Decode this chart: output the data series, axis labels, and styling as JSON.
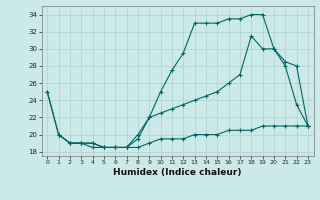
{
  "title": "",
  "xlabel": "Humidex (Indice chaleur)",
  "bg_color": "#cce9e9",
  "grid_color": "#b0d0d0",
  "line_color": "#006666",
  "xlim": [
    -0.5,
    23.5
  ],
  "ylim": [
    17.5,
    35.0
  ],
  "xticks": [
    0,
    1,
    2,
    3,
    4,
    5,
    6,
    7,
    8,
    9,
    10,
    11,
    12,
    13,
    14,
    15,
    16,
    17,
    18,
    19,
    20,
    21,
    22,
    23
  ],
  "yticks": [
    18,
    20,
    22,
    24,
    26,
    28,
    30,
    32,
    34
  ],
  "line1_x": [
    0,
    1,
    2,
    3,
    4,
    5,
    6,
    7,
    8,
    9,
    10,
    11,
    12,
    13,
    14,
    15,
    16,
    17,
    18,
    19,
    20,
    21,
    22,
    23
  ],
  "line1_y": [
    25,
    20,
    19,
    19,
    19,
    18.5,
    18.5,
    18.5,
    19.5,
    22,
    25,
    27.5,
    29.5,
    33,
    33,
    33,
    33.5,
    33.5,
    34,
    34,
    30,
    28,
    23.5,
    21
  ],
  "line2_x": [
    0,
    1,
    2,
    3,
    4,
    5,
    6,
    7,
    8,
    9,
    10,
    11,
    12,
    13,
    14,
    15,
    16,
    17,
    18,
    19,
    20,
    21,
    22,
    23
  ],
  "line2_y": [
    25,
    20,
    19,
    19,
    19,
    18.5,
    18.5,
    18.5,
    20,
    22,
    22.5,
    23,
    23.5,
    24,
    24.5,
    25,
    26,
    27,
    31.5,
    30,
    30,
    28.5,
    28,
    21
  ],
  "line3_x": [
    1,
    2,
    3,
    4,
    5,
    6,
    7,
    8,
    9,
    10,
    11,
    12,
    13,
    14,
    15,
    16,
    17,
    18,
    19,
    20,
    21,
    22,
    23
  ],
  "line3_y": [
    20,
    19,
    19,
    18.5,
    18.5,
    18.5,
    18.5,
    18.5,
    19,
    19.5,
    19.5,
    19.5,
    20,
    20,
    20,
    20.5,
    20.5,
    20.5,
    21,
    21,
    21,
    21,
    21
  ]
}
